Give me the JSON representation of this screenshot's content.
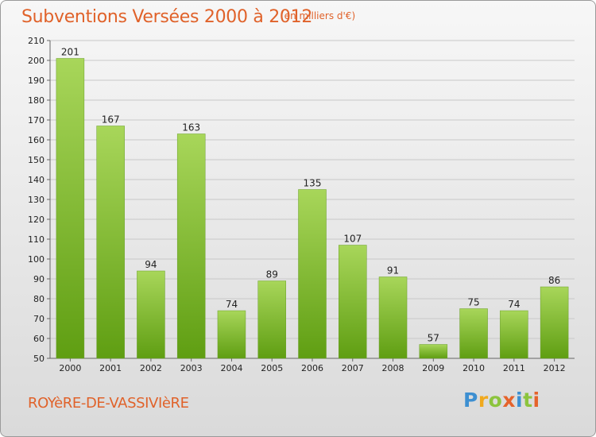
{
  "header": {
    "title": "Subventions Versées 2000 à 2012",
    "subtitle": "(en milliers d'€)"
  },
  "footer": {
    "commune": "ROYèRE-DE-VASSIVIèRE",
    "logo": "Proxiti"
  },
  "colors": {
    "accent": "#e0622a",
    "bar_top": "#a8d65a",
    "bar_bottom": "#5f9e12"
  },
  "chart_data": {
    "type": "bar",
    "categories": [
      "2000",
      "2001",
      "2002",
      "2003",
      "2004",
      "2005",
      "2006",
      "2007",
      "2008",
      "2009",
      "2010",
      "2011",
      "2012"
    ],
    "values": [
      201,
      167,
      94,
      163,
      74,
      89,
      135,
      107,
      91,
      57,
      75,
      74,
      86
    ],
    "title": "Subventions Versées 2000 à 2012",
    "subtitle": "(en milliers d'€)",
    "ylim": [
      50,
      210
    ],
    "yticks": [
      50,
      60,
      70,
      80,
      90,
      100,
      110,
      120,
      130,
      140,
      150,
      160,
      170,
      180,
      190,
      200,
      210
    ],
    "grid": true,
    "legend": "none"
  }
}
